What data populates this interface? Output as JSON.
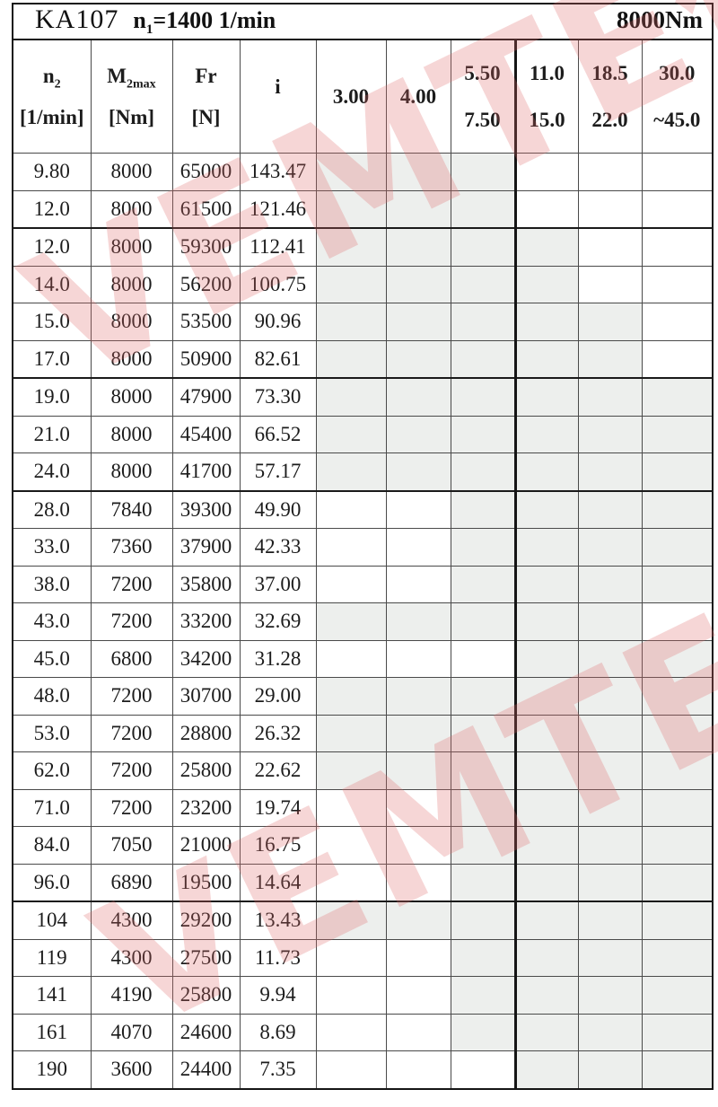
{
  "title": {
    "model": "KA107",
    "speed_prefix": "n",
    "speed_sub": "1",
    "speed_rest": "=1400 1/min",
    "torque": "8000Nm"
  },
  "watermark": {
    "text": "VEMTE传动",
    "color": "#dd6666"
  },
  "colors": {
    "shaded_cell": "#edefed",
    "grid_line": "#4a4a4a",
    "strong_line": "#151515",
    "text": "#1c1c1c"
  },
  "table": {
    "columns": [
      {
        "main": "n",
        "sub": "2",
        "unit": "[1/min]"
      },
      {
        "main": "M",
        "sub": "2max",
        "unit": "[Nm]"
      },
      {
        "main": "Fr",
        "sub": "",
        "unit": "[N]"
      },
      {
        "main": "i",
        "sub": "",
        "unit": ""
      }
    ],
    "ratio_columns": [
      {
        "line1": "3.00",
        "line2": ""
      },
      {
        "line1": "4.00",
        "line2": ""
      },
      {
        "line1": "5.50",
        "line2": "7.50"
      },
      {
        "line1": "11.0",
        "line2": "15.0"
      },
      {
        "line1": "18.5",
        "line2": "22.0"
      },
      {
        "line1": "30.0",
        "line2": "~45.0"
      }
    ],
    "group_breaks_after_row": [
      2,
      6,
      9,
      20
    ],
    "rows": [
      {
        "n2": "9.80",
        "m2max": "8000",
        "fr": "65000",
        "i": "143.47",
        "cells": [
          1,
          1,
          1,
          0,
          0,
          0
        ]
      },
      {
        "n2": "12.0",
        "m2max": "8000",
        "fr": "61500",
        "i": "121.46",
        "cells": [
          1,
          1,
          1,
          0,
          0,
          0
        ]
      },
      {
        "n2": "12.0",
        "m2max": "8000",
        "fr": "59300",
        "i": "112.41",
        "cells": [
          1,
          1,
          1,
          1,
          0,
          0
        ]
      },
      {
        "n2": "14.0",
        "m2max": "8000",
        "fr": "56200",
        "i": "100.75",
        "cells": [
          1,
          1,
          1,
          1,
          0,
          0
        ]
      },
      {
        "n2": "15.0",
        "m2max": "8000",
        "fr": "53500",
        "i": "90.96",
        "cells": [
          1,
          1,
          1,
          1,
          1,
          0
        ]
      },
      {
        "n2": "17.0",
        "m2max": "8000",
        "fr": "50900",
        "i": "82.61",
        "cells": [
          1,
          1,
          1,
          1,
          1,
          0
        ]
      },
      {
        "n2": "19.0",
        "m2max": "8000",
        "fr": "47900",
        "i": "73.30",
        "cells": [
          1,
          1,
          1,
          1,
          1,
          1
        ]
      },
      {
        "n2": "21.0",
        "m2max": "8000",
        "fr": "45400",
        "i": "66.52",
        "cells": [
          1,
          1,
          1,
          1,
          1,
          1
        ]
      },
      {
        "n2": "24.0",
        "m2max": "8000",
        "fr": "41700",
        "i": "57.17",
        "cells": [
          1,
          1,
          1,
          1,
          1,
          1
        ]
      },
      {
        "n2": "28.0",
        "m2max": "7840",
        "fr": "39300",
        "i": "49.90",
        "cells": [
          0,
          0,
          1,
          1,
          1,
          1
        ]
      },
      {
        "n2": "33.0",
        "m2max": "7360",
        "fr": "37900",
        "i": "42.33",
        "cells": [
          0,
          0,
          1,
          1,
          1,
          1
        ]
      },
      {
        "n2": "38.0",
        "m2max": "7200",
        "fr": "35800",
        "i": "37.00",
        "cells": [
          0,
          0,
          1,
          1,
          1,
          1
        ]
      },
      {
        "n2": "43.0",
        "m2max": "7200",
        "fr": "33200",
        "i": "32.69",
        "cells": [
          1,
          1,
          1,
          1,
          1,
          0
        ]
      },
      {
        "n2": "45.0",
        "m2max": "6800",
        "fr": "34200",
        "i": "31.28",
        "cells": [
          0,
          0,
          0,
          1,
          1,
          1
        ]
      },
      {
        "n2": "48.0",
        "m2max": "7200",
        "fr": "30700",
        "i": "29.00",
        "cells": [
          1,
          1,
          1,
          1,
          1,
          1
        ]
      },
      {
        "n2": "53.0",
        "m2max": "7200",
        "fr": "28800",
        "i": "26.32",
        "cells": [
          1,
          1,
          1,
          1,
          1,
          1
        ]
      },
      {
        "n2": "62.0",
        "m2max": "7200",
        "fr": "25800",
        "i": "22.62",
        "cells": [
          1,
          1,
          1,
          1,
          1,
          1
        ]
      },
      {
        "n2": "71.0",
        "m2max": "7200",
        "fr": "23200",
        "i": "19.74",
        "cells": [
          0,
          0,
          1,
          1,
          1,
          1
        ]
      },
      {
        "n2": "84.0",
        "m2max": "7050",
        "fr": "21000",
        "i": "16.75",
        "cells": [
          0,
          0,
          1,
          1,
          1,
          1
        ]
      },
      {
        "n2": "96.0",
        "m2max": "6890",
        "fr": "19500",
        "i": "14.64",
        "cells": [
          0,
          0,
          1,
          1,
          1,
          1
        ]
      },
      {
        "n2": "104",
        "m2max": "4300",
        "fr": "29200",
        "i": "13.43",
        "cells": [
          1,
          1,
          1,
          1,
          1,
          1
        ]
      },
      {
        "n2": "119",
        "m2max": "4300",
        "fr": "27500",
        "i": "11.73",
        "cells": [
          0,
          0,
          1,
          1,
          1,
          1
        ]
      },
      {
        "n2": "141",
        "m2max": "4190",
        "fr": "25800",
        "i": "9.94",
        "cells": [
          0,
          0,
          1,
          1,
          1,
          1
        ]
      },
      {
        "n2": "161",
        "m2max": "4070",
        "fr": "24600",
        "i": "8.69",
        "cells": [
          0,
          0,
          1,
          1,
          1,
          1
        ]
      },
      {
        "n2": "190",
        "m2max": "3600",
        "fr": "24400",
        "i": "7.35",
        "cells": [
          0,
          0,
          0,
          1,
          1,
          1
        ]
      }
    ]
  }
}
